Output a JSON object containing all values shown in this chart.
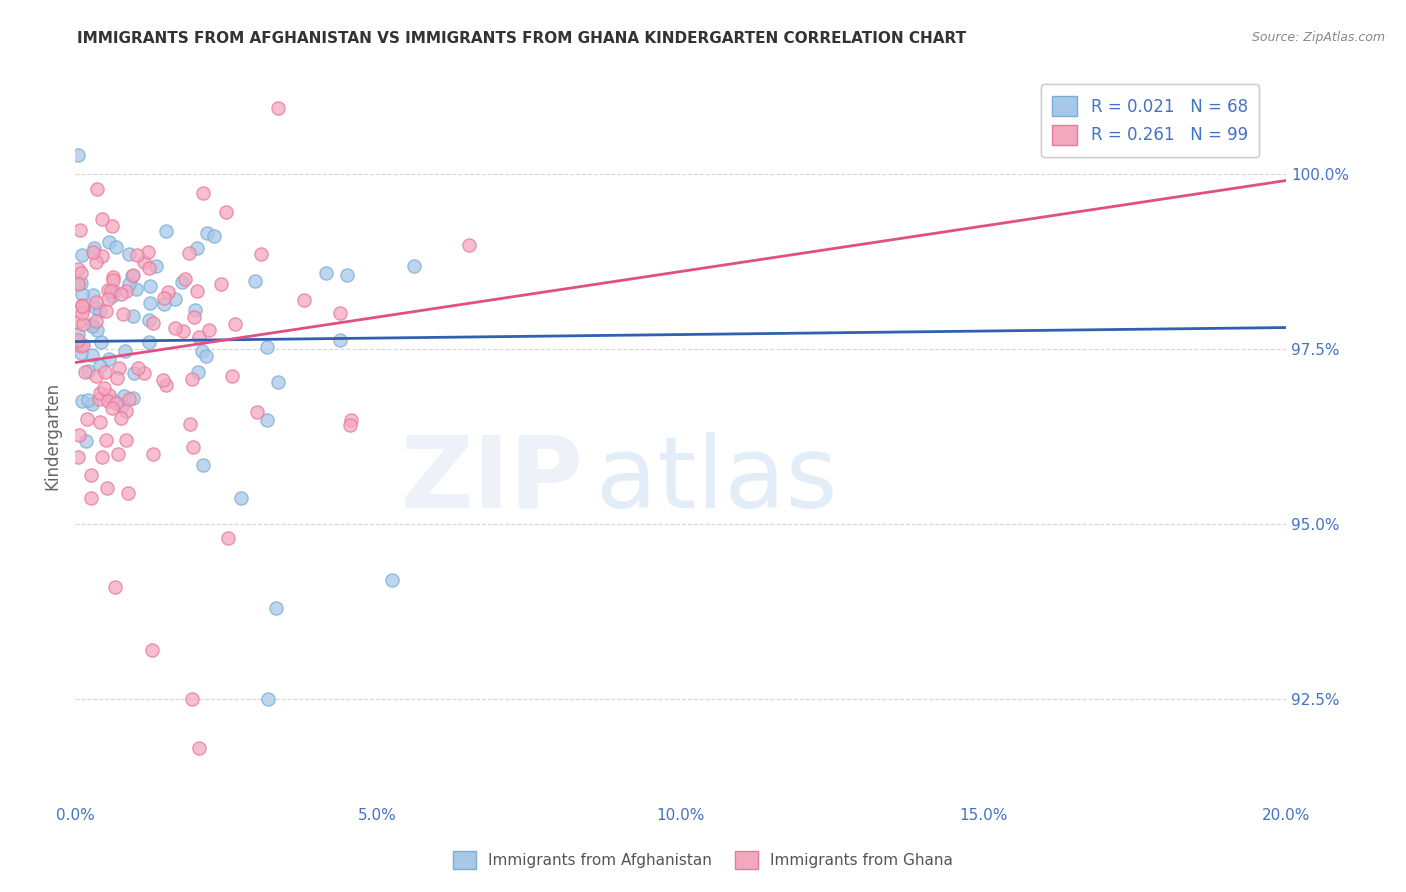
{
  "title": "IMMIGRANTS FROM AFGHANISTAN VS IMMIGRANTS FROM GHANA KINDERGARTEN CORRELATION CHART",
  "source": "Source: ZipAtlas.com",
  "ylabel": "Kindergarten",
  "xlim": [
    0.0,
    0.2
  ],
  "ylim": [
    91.0,
    101.5
  ],
  "yticks": [
    92.5,
    95.0,
    97.5,
    100.0
  ],
  "ytick_labels": [
    "92.5%",
    "95.0%",
    "97.5%",
    "100.0%"
  ],
  "xticks": [
    0.0,
    0.05,
    0.1,
    0.15,
    0.2
  ],
  "xtick_labels": [
    "0.0%",
    "5.0%",
    "10.0%",
    "15.0%",
    "20.0%"
  ],
  "legend_labels": [
    "Immigrants from Afghanistan",
    "Immigrants from Ghana"
  ],
  "afghanistan_R": 0.021,
  "afghanistan_N": 68,
  "ghana_R": 0.261,
  "ghana_N": 99,
  "afghanistan_color": "#A8C8E8",
  "ghana_color": "#F4A8C0",
  "afghanistan_edge_color": "#7AADD4",
  "ghana_edge_color": "#E87899",
  "afghanistan_line_color": "#3060B0",
  "ghana_line_color": "#E05080",
  "background_color": "#FFFFFF",
  "title_color": "#333333",
  "tick_color": "#4472C4",
  "ylabel_color": "#666666",
  "grid_color": "#CCCCCC",
  "title_fontsize": 11,
  "af_line_intercept": 97.6,
  "af_line_slope": 1.0,
  "gh_line_intercept": 97.3,
  "gh_line_slope": 13.0
}
